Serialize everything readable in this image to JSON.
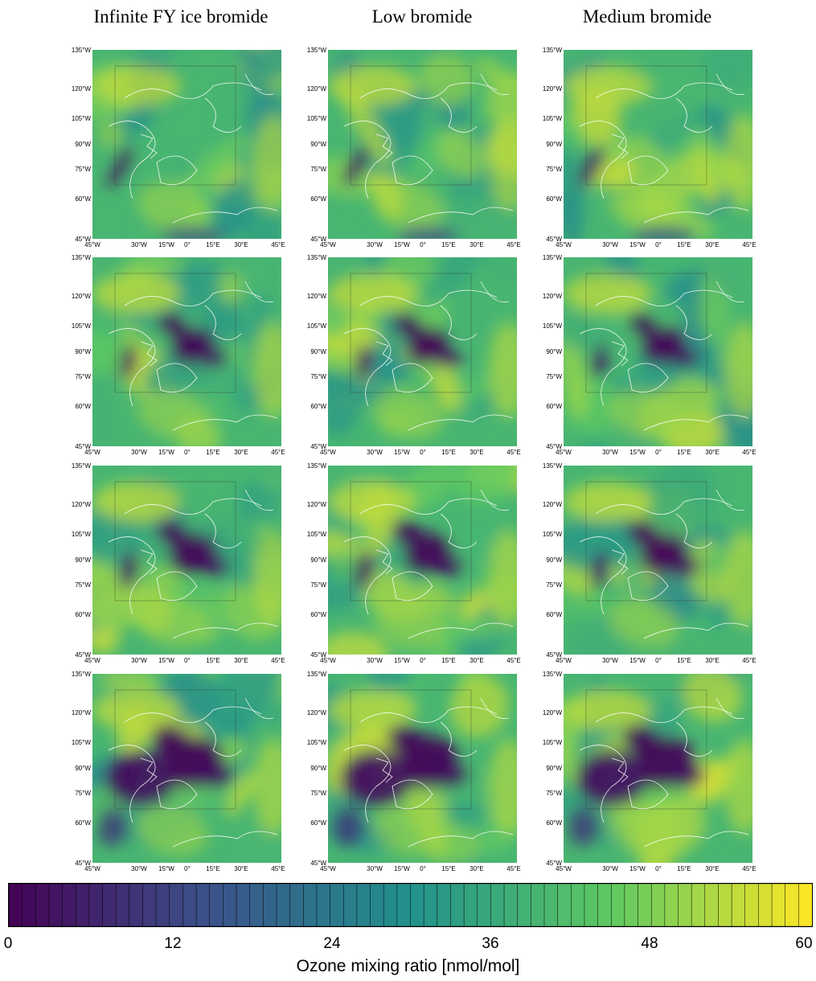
{
  "columns": [
    {
      "title": "Infinite FY ice bromide"
    },
    {
      "title": "Low bromide"
    },
    {
      "title": "Medium bromide"
    }
  ],
  "rows": 4,
  "y_tick_labels": [
    "135°W",
    "120°W",
    "105°W",
    "90°W",
    "75°W",
    "60°W",
    "45°W"
  ],
  "x_tick_labels": [
    "45°W",
    "30°W",
    "15°W",
    "0°",
    "15°E",
    "30°E",
    "45°E"
  ],
  "colorbar": {
    "label": "Ozone mixing ratio [nmol/mol]",
    "ticks": [
      "0",
      "12",
      "24",
      "36",
      "48",
      "60"
    ],
    "min": 0,
    "max": 60,
    "levels": 60,
    "colormap": "viridis",
    "colors": [
      "#440154",
      "#3b528b",
      "#21918c",
      "#5ec962",
      "#fde725"
    ]
  },
  "map": {
    "coastline_color": "#ffffff",
    "projection": "polar-stereographic Arctic"
  }
}
